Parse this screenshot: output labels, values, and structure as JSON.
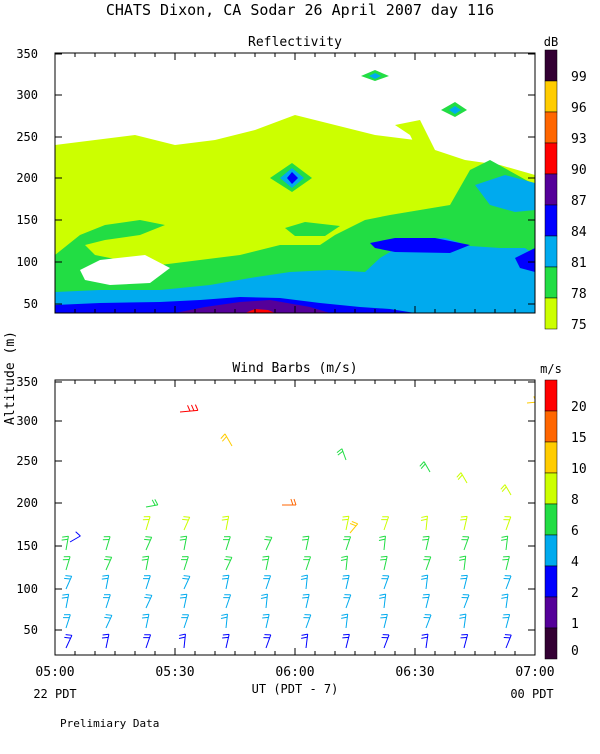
{
  "page": {
    "title": "CHATS Dixon, CA  Sodar  26 April 2007  day 116",
    "footer_note": "Prelimiary Data"
  },
  "axes": {
    "ylabel": "Altitude (m)",
    "xlabel": "UT  (PDT - 7)",
    "y_ticks": [
      "350",
      "300",
      "250",
      "200",
      "150",
      "100",
      "50"
    ],
    "x_ticks": [
      "05:00",
      "05:30",
      "06:00",
      "06:30",
      "07:00"
    ],
    "local_start": "22 PDT",
    "local_end": "00 PDT"
  },
  "colors": {
    "c75": "#ccff00",
    "c78": "#22dd44",
    "c81": "#00aaee",
    "c84": "#0000ff",
    "c87": "#550099",
    "c90": "#ff0000",
    "c93": "#ff6600",
    "c96": "#ffcc00",
    "c99": "#330033",
    "w0": "#330033",
    "w1": "#550099",
    "w2": "#0000ff",
    "w4": "#00aaee",
    "w6": "#22dd44",
    "w8": "#ccff00",
    "w10": "#ffcc00",
    "w15": "#ff6600",
    "w20": "#ff0000"
  },
  "chart_data": [
    {
      "type": "heatmap",
      "title": "Reflectivity",
      "ylabel": "Altitude (m)",
      "xlabel": "UT  (PDT - 7)",
      "x_range": [
        "05:00",
        "07:00"
      ],
      "ylim": [
        30,
        355
      ],
      "colorbar": {
        "unit": "dB",
        "levels": [
          "99",
          "96",
          "93",
          "90",
          "87",
          "84",
          "81",
          "78",
          "75"
        ],
        "colors": [
          "#330033",
          "#ffcc00",
          "#ff6600",
          "#ff0000",
          "#550099",
          "#0000ff",
          "#00aaee",
          "#22dd44",
          "#ccff00"
        ]
      }
    },
    {
      "type": "scatter",
      "title": "Wind Barbs (m/s)",
      "ylabel": "Altitude (m)",
      "xlabel": "UT  (PDT - 7)",
      "x_range": [
        "05:00",
        "07:00"
      ],
      "ylim": [
        20,
        355
      ],
      "colorbar": {
        "unit": "m/s",
        "levels": [
          "20",
          "15",
          "10",
          "8",
          "6",
          "4",
          "2",
          "1",
          "0"
        ],
        "colors": [
          "#ff0000",
          "#ff6600",
          "#ffcc00",
          "#ccff00",
          "#22dd44",
          "#00aaee",
          "#0000ff",
          "#550099",
          "#330033"
        ]
      }
    }
  ]
}
